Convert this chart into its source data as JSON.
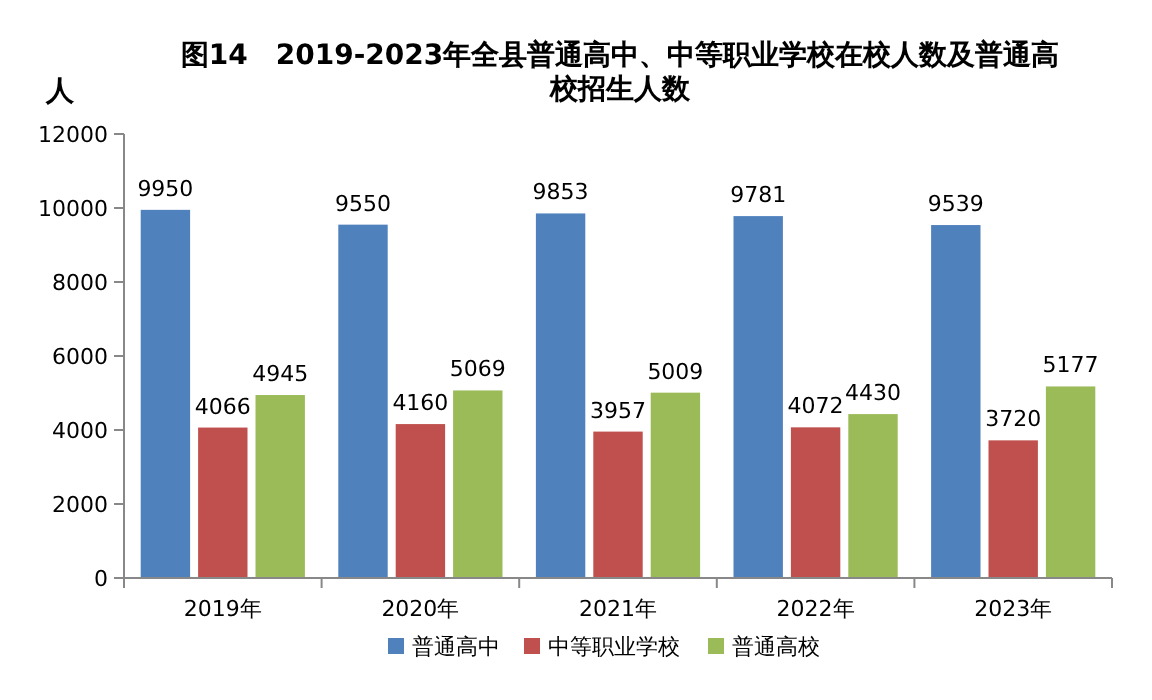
{
  "chart_data": {
    "type": "bar",
    "title": "图14　2019-2023年全县普通高中、中等职业学校在校人数及普通高校招生人数",
    "ylabel": "人",
    "categories": [
      "2019年",
      "2020年",
      "2021年",
      "2022年",
      "2023年"
    ],
    "series": [
      {
        "name": "普通高中",
        "color": "#4f81bd",
        "values": [
          9950,
          9550,
          9853,
          9781,
          9539
        ]
      },
      {
        "name": "中等职业学校",
        "color": "#c0504d",
        "values": [
          4066,
          4160,
          3957,
          4072,
          3720
        ]
      },
      {
        "name": "普通高校",
        "color": "#9bbb59",
        "values": [
          4945,
          5069,
          5009,
          4430,
          5177
        ]
      }
    ],
    "ylim": [
      0,
      12000
    ],
    "yticks": [
      0,
      2000,
      4000,
      6000,
      8000,
      10000,
      12000
    ],
    "data_labels": true,
    "legend": "bottom"
  }
}
